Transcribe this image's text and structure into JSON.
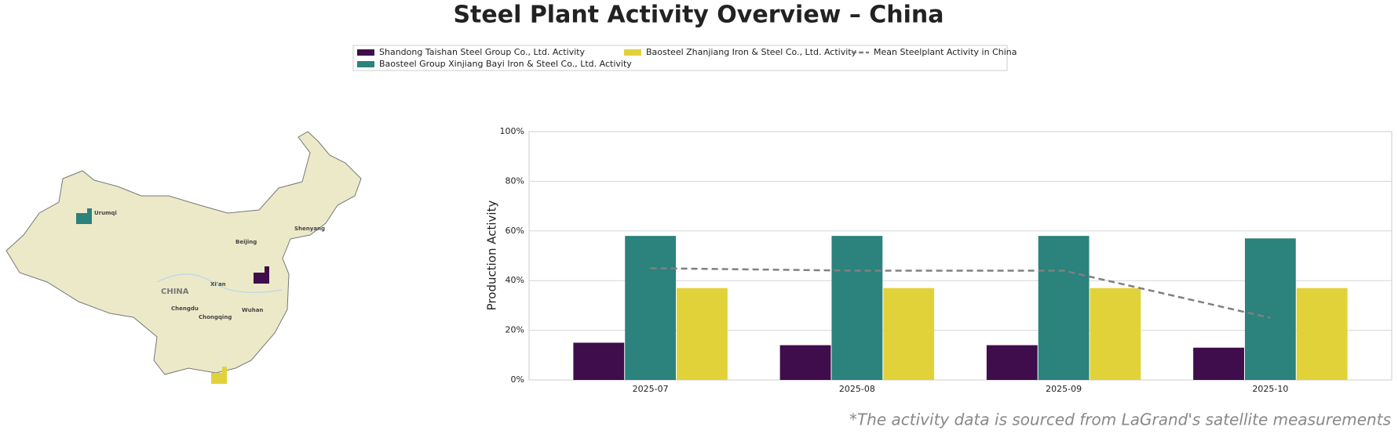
{
  "chart_data": {
    "type": "bar",
    "title": "Steel Plant Activity Overview – China",
    "ylabel": "Production Activity",
    "footnote": "*The activity data is sourced from LaGrand's satellite measurements",
    "categories": [
      "2025-07",
      "2025-08",
      "2025-09",
      "2025-10"
    ],
    "ylim": [
      0,
      100
    ],
    "yticks": [
      {
        "value": 0,
        "label": "0%"
      },
      {
        "value": 20,
        "label": "20%"
      },
      {
        "value": 40,
        "label": "40%"
      },
      {
        "value": 60,
        "label": "60%"
      },
      {
        "value": 80,
        "label": "80%"
      },
      {
        "value": 100,
        "label": "100%"
      }
    ],
    "grid": true,
    "series": [
      {
        "name": "Shandong Taishan Steel Group Co., Ltd. Activity",
        "color": "#3f0d4b",
        "values": [
          15,
          14,
          14,
          13
        ]
      },
      {
        "name": "Baosteel Group Xinjiang Bayi Iron & Steel Co., Ltd. Activity",
        "color": "#2c827c",
        "values": [
          58,
          58,
          58,
          57
        ]
      },
      {
        "name": "Baosteel Zhanjiang Iron & Steel Co., Ltd. Activity",
        "color": "#e2d23a",
        "values": [
          37,
          37,
          37,
          37
        ]
      },
      {
        "name": "Mean Steelplant Activity in China",
        "type": "line",
        "style": "dashed",
        "color": "#808080",
        "values": [
          45,
          44,
          44,
          25
        ]
      }
    ]
  },
  "map": {
    "labels": [
      "Urumqi",
      "Beijing",
      "Shenyang",
      "CHINA",
      "Xi'an",
      "Chengdu",
      "Chongqing",
      "Wuhan"
    ]
  }
}
